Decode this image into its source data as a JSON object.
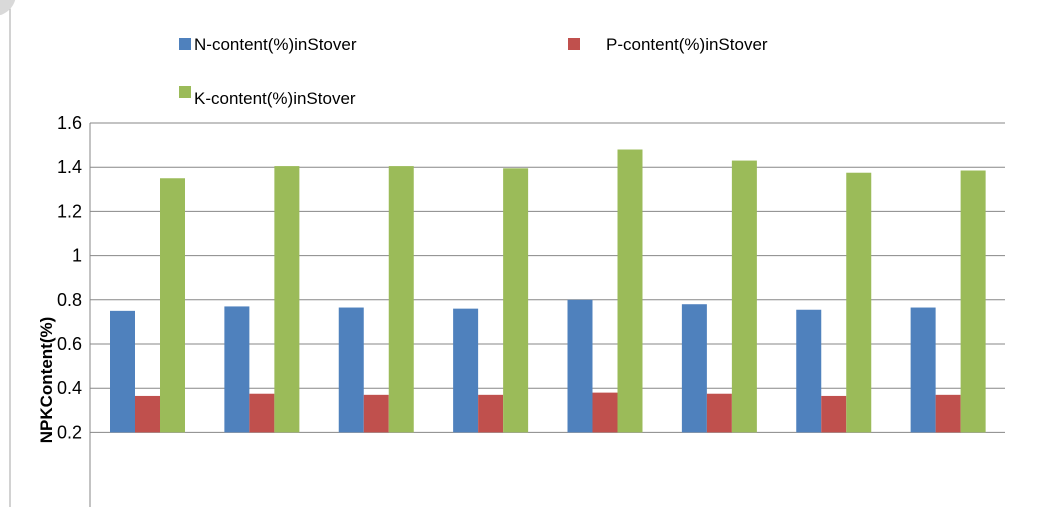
{
  "chart_data": {
    "type": "bar",
    "title": "",
    "xlabel": "",
    "ylabel": "NPKContent(%)",
    "ylim": [
      0.2,
      1.6
    ],
    "yticks": [
      "0.2",
      "0.4",
      "0.6",
      "0.8",
      "1",
      "1.2",
      "1.4",
      "1.6"
    ],
    "grid": true,
    "legend_position": "top",
    "categories": [
      "",
      "",
      "",
      "",
      "",
      "",
      "",
      ""
    ],
    "series": [
      {
        "name": "N-content(%)inStover",
        "color": "#4F81BD",
        "values": [
          0.75,
          0.77,
          0.765,
          0.76,
          0.8,
          0.78,
          0.755,
          0.765
        ]
      },
      {
        "name": "P-content(%)inStover",
        "color": "#C0504D",
        "values": [
          0.365,
          0.375,
          0.37,
          0.37,
          0.38,
          0.375,
          0.365,
          0.37
        ]
      },
      {
        "name": "K-content(%)inStover",
        "color": "#9BBB59",
        "values": [
          1.35,
          1.405,
          1.405,
          1.395,
          1.48,
          1.43,
          1.375,
          1.385
        ]
      }
    ]
  }
}
